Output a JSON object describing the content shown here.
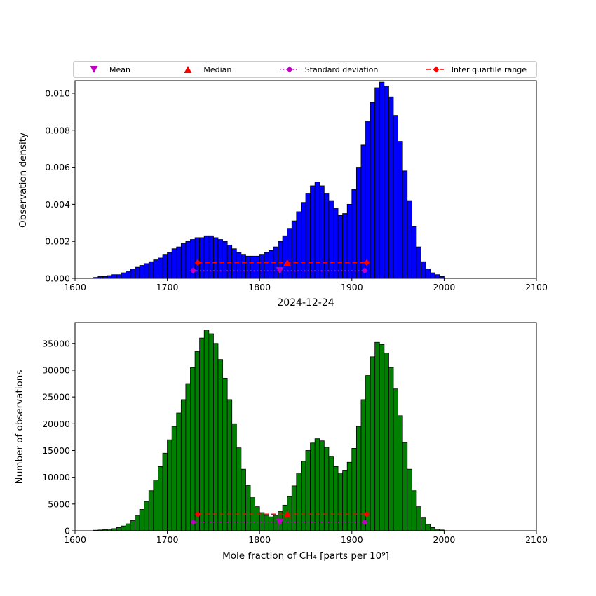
{
  "figure": {
    "title": "2024-12-24",
    "xlabel": "Mole fraction of CH₄ [parts per 10⁹]",
    "background": "#ffffff"
  },
  "legend": {
    "items": [
      {
        "label": "Mean",
        "marker": "triangle-down",
        "color": "#c000c0",
        "linestyle": "none"
      },
      {
        "label": "Median",
        "marker": "triangle-up",
        "color": "#ff0000",
        "linestyle": "none"
      },
      {
        "label": "Standard deviation",
        "marker": "diamond",
        "color": "#c000c0",
        "linestyle": "dotted"
      },
      {
        "label": "Inter quartile range",
        "marker": "diamond",
        "color": "#ff0000",
        "linestyle": "dashed"
      }
    ]
  },
  "chart_data": [
    {
      "type": "bar",
      "name": "observation-density-histogram",
      "title": "",
      "ylabel": "Observation density",
      "bar_color": "#0000ff",
      "edge_color": "#000000",
      "grid": false,
      "xlim": [
        1600,
        2100
      ],
      "ylim": [
        0,
        0.01068
      ],
      "bin_start": 1620,
      "bin_width": 5,
      "values": [
        5e-05,
        0.0001,
        0.0001,
        0.00015,
        0.0002,
        0.0002,
        0.0003,
        0.0004,
        0.0005,
        0.0006,
        0.0007,
        0.0008,
        0.0009,
        0.001,
        0.0011,
        0.0013,
        0.0014,
        0.0016,
        0.0017,
        0.0019,
        0.002,
        0.0021,
        0.0022,
        0.0022,
        0.0023,
        0.0023,
        0.0022,
        0.0021,
        0.002,
        0.0018,
        0.0016,
        0.0014,
        0.0013,
        0.0012,
        0.0012,
        0.0012,
        0.0013,
        0.0014,
        0.0015,
        0.0017,
        0.002,
        0.0023,
        0.0027,
        0.0031,
        0.0036,
        0.0041,
        0.0046,
        0.005,
        0.0052,
        0.005,
        0.0046,
        0.0042,
        0.0038,
        0.0034,
        0.0035,
        0.004,
        0.0048,
        0.006,
        0.0072,
        0.0085,
        0.0095,
        0.0103,
        0.0106,
        0.0104,
        0.0098,
        0.0088,
        0.0074,
        0.0058,
        0.0042,
        0.0028,
        0.0017,
        0.0009,
        0.0005,
        0.0003,
        0.0002,
        0.0001
      ],
      "xticks": [
        {
          "v": 1600,
          "label": "1600"
        },
        {
          "v": 1700,
          "label": "1700"
        },
        {
          "v": 1800,
          "label": "1800"
        },
        {
          "v": 1900,
          "label": "1900"
        },
        {
          "v": 2000,
          "label": "2000"
        },
        {
          "v": 2100,
          "label": "2100"
        }
      ],
      "yticks": [
        {
          "v": 0,
          "label": "0.000"
        },
        {
          "v": 0.002,
          "label": "0.002"
        },
        {
          "v": 0.004,
          "label": "0.004"
        },
        {
          "v": 0.006,
          "label": "0.006"
        },
        {
          "v": 0.008,
          "label": "0.008"
        },
        {
          "v": 0.01,
          "label": "0.010"
        }
      ],
      "annotations": {
        "mean": {
          "x": 1822,
          "y": 0.00042
        },
        "median": {
          "x": 1830,
          "y": 0.00085
        },
        "std": {
          "x1": 1728,
          "x2": 1914,
          "y": 0.00042
        },
        "iqr": {
          "x1": 1733,
          "x2": 1916,
          "y": 0.00085
        }
      }
    },
    {
      "type": "bar",
      "name": "observation-count-histogram",
      "title": "2024-12-24",
      "ylabel": "Number of observations",
      "bar_color": "#008000",
      "edge_color": "#000000",
      "grid": false,
      "xlim": [
        1600,
        2100
      ],
      "ylim": [
        0,
        38900
      ],
      "bin_start": 1620,
      "bin_width": 5,
      "values": [
        100,
        150,
        200,
        300,
        400,
        600,
        900,
        1300,
        1900,
        2800,
        4000,
        5500,
        7500,
        9500,
        12000,
        14500,
        17000,
        19500,
        22000,
        24500,
        27500,
        30500,
        33500,
        36000,
        37500,
        36800,
        35000,
        32000,
        28500,
        24500,
        20000,
        15500,
        11500,
        8500,
        6200,
        4500,
        3400,
        2800,
        2600,
        2900,
        3600,
        4800,
        6400,
        8400,
        10800,
        13000,
        15000,
        16400,
        17200,
        16800,
        15600,
        13800,
        12000,
        10800,
        11200,
        12800,
        15400,
        19500,
        24500,
        29000,
        32500,
        35200,
        34800,
        33200,
        30500,
        26500,
        21500,
        16500,
        11500,
        7500,
        4500,
        2400,
        1200,
        600,
        300,
        150
      ],
      "xticks": [
        {
          "v": 1600,
          "label": "1600"
        },
        {
          "v": 1700,
          "label": "1700"
        },
        {
          "v": 1800,
          "label": "1800"
        },
        {
          "v": 1900,
          "label": "1900"
        },
        {
          "v": 2000,
          "label": "2000"
        },
        {
          "v": 2100,
          "label": "2100"
        }
      ],
      "yticks": [
        {
          "v": 0,
          "label": "0"
        },
        {
          "v": 5000,
          "label": "5000"
        },
        {
          "v": 10000,
          "label": "10000"
        },
        {
          "v": 15000,
          "label": "15000"
        },
        {
          "v": 20000,
          "label": "20000"
        },
        {
          "v": 25000,
          "label": "25000"
        },
        {
          "v": 30000,
          "label": "30000"
        },
        {
          "v": 35000,
          "label": "35000"
        }
      ],
      "annotations": {
        "mean": {
          "x": 1822,
          "y": 1600
        },
        "median": {
          "x": 1830,
          "y": 3100
        },
        "std": {
          "x1": 1728,
          "x2": 1914,
          "y": 1600
        },
        "iqr": {
          "x1": 1733,
          "x2": 1916,
          "y": 3100
        }
      }
    }
  ]
}
